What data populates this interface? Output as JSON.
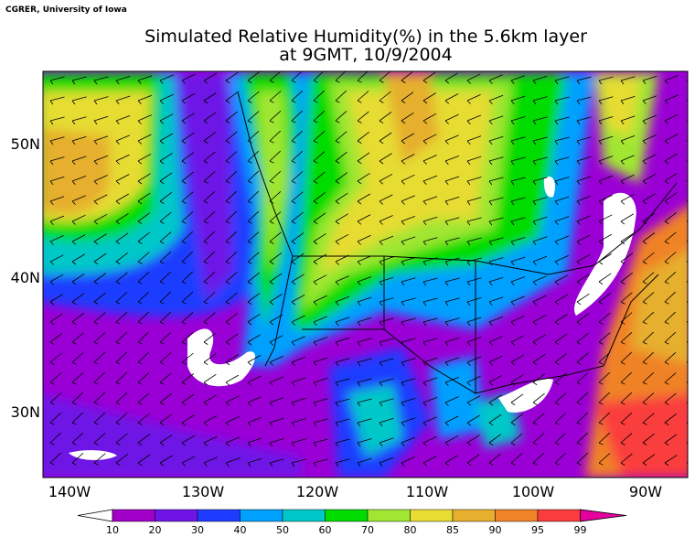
{
  "credit": "CGRER, University of Iowa",
  "title": [
    "Simulated Relative Humidity(%) in the 5.6km layer",
    "at 9GMT, 10/9/2004"
  ],
  "latitudes": [
    "50N",
    "40N",
    "30N"
  ],
  "longitudes": [
    "140W",
    "130W",
    "120W",
    "110W",
    "100W",
    "90W"
  ],
  "colorbar": {
    "levels": [
      10,
      20,
      30,
      40,
      50,
      60,
      70,
      80,
      85,
      90,
      95,
      99
    ],
    "under_color": "#ffffff",
    "colors": [
      "#a000c8",
      "#6e14e6",
      "#1e3cff",
      "#00a0ff",
      "#00c8c8",
      "#00dc00",
      "#a0e632",
      "#e6dc32",
      "#e6af2d",
      "#f08228",
      "#fa3c3c"
    ],
    "over_color": "#e6009e"
  }
}
